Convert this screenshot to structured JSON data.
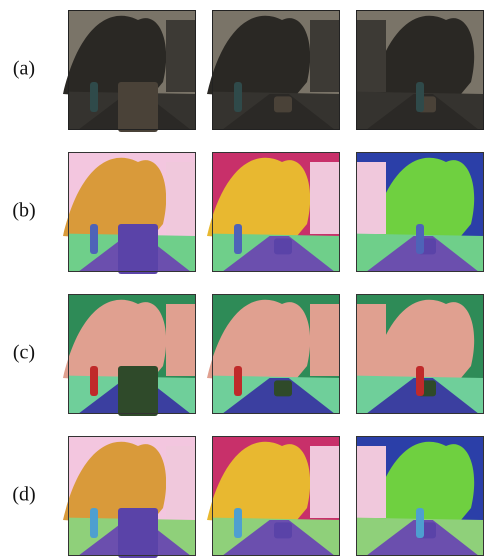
{
  "rows": [
    {
      "label": "(a)"
    },
    {
      "label": "(b)"
    },
    {
      "label": "(c)"
    },
    {
      "label": "(d)"
    }
  ]
}
